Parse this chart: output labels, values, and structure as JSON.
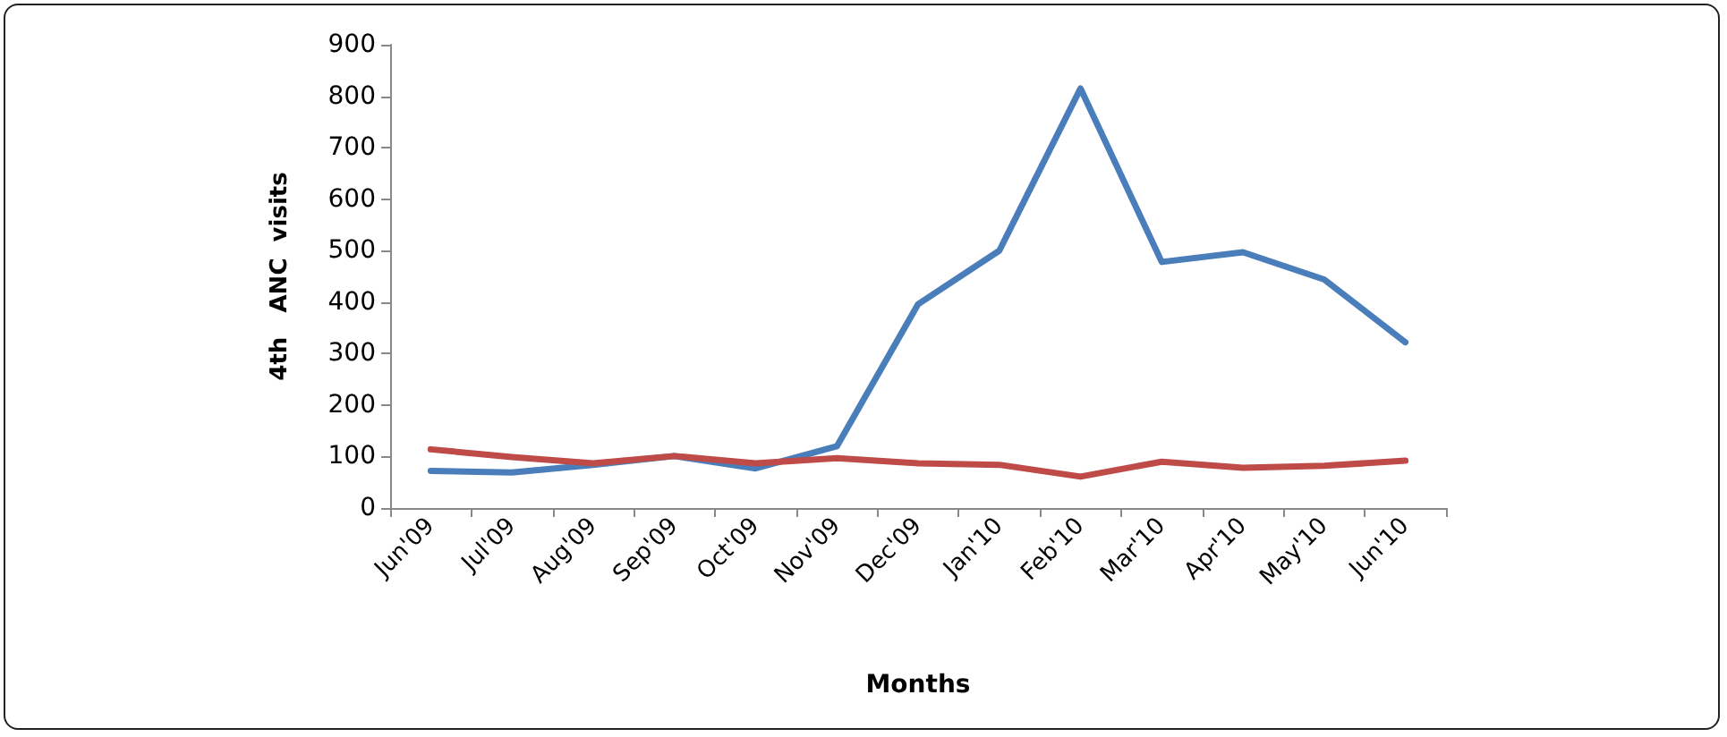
{
  "chart_data": {
    "type": "line",
    "xlabel": "Months",
    "ylabel": "4th   ANC  visits",
    "categories": [
      "Jun'09",
      "Jul'09",
      "Aug'09",
      "Sep'09",
      "Oct'09",
      "Nov'09",
      "Dec'09",
      "Jan'10",
      "Feb'10",
      "Mar'10",
      "Apr'10",
      "May'10",
      "Jun'10"
    ],
    "series": [
      {
        "color": "#4a7ebb",
        "values": [
          72,
          69,
          84,
          101,
          77,
          120,
          396,
          500,
          815,
          478,
          497,
          444,
          322
        ]
      },
      {
        "color": "#be4b48",
        "values": [
          114,
          99,
          87,
          101,
          87,
          97,
          87,
          84,
          61,
          90,
          78,
          82,
          92
        ]
      }
    ],
    "ylim": [
      0,
      900
    ],
    "yticks": [
      0,
      100,
      200,
      300,
      400,
      500,
      600,
      700,
      800,
      900
    ],
    "grid": false,
    "marker": "none",
    "line_style": "solid"
  }
}
